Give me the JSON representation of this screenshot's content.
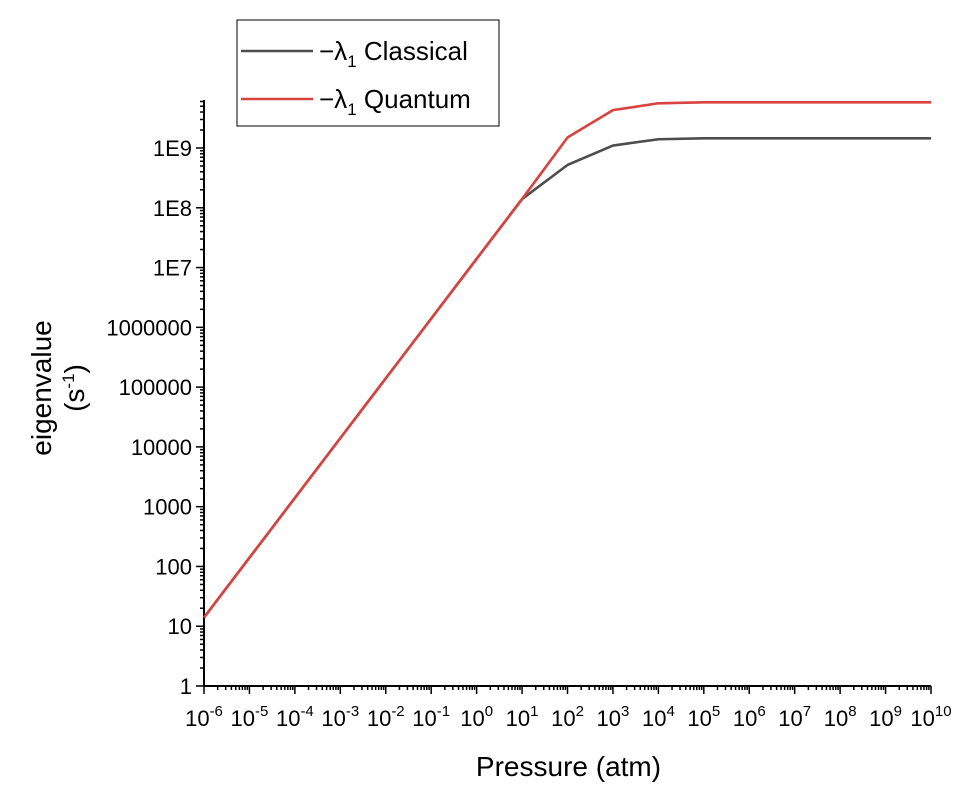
{
  "chart_data": {
    "type": "line",
    "xlabel": "Pressure (atm)",
    "ylabel": "eigenvalue",
    "ylabel_unit": "(s-1)",
    "xscale": "log",
    "yscale": "log",
    "xlim": [
      1e-06,
      10000000000.0
    ],
    "ylim": [
      1,
      10000000000.0
    ],
    "x_ticks": [
      {
        "base": "10",
        "exp": "-6",
        "value": 1e-06
      },
      {
        "base": "10",
        "exp": "-5",
        "value": 1e-05
      },
      {
        "base": "10",
        "exp": "-4",
        "value": 0.0001
      },
      {
        "base": "10",
        "exp": "-3",
        "value": 0.001
      },
      {
        "base": "10",
        "exp": "-2",
        "value": 0.01
      },
      {
        "base": "10",
        "exp": "-1",
        "value": 0.1
      },
      {
        "base": "10",
        "exp": "0",
        "value": 1
      },
      {
        "base": "10",
        "exp": "1",
        "value": 10
      },
      {
        "base": "10",
        "exp": "2",
        "value": 100
      },
      {
        "base": "10",
        "exp": "3",
        "value": 1000
      },
      {
        "base": "10",
        "exp": "4",
        "value": 10000
      },
      {
        "base": "10",
        "exp": "5",
        "value": 100000
      },
      {
        "base": "10",
        "exp": "6",
        "value": 1000000
      },
      {
        "base": "10",
        "exp": "7",
        "value": 10000000
      },
      {
        "base": "10",
        "exp": "8",
        "value": 100000000
      },
      {
        "base": "10",
        "exp": "9",
        "value": 1000000000
      },
      {
        "base": "10",
        "exp": "10",
        "value": 10000000000
      }
    ],
    "y_ticks": [
      {
        "label": "1",
        "value": 1
      },
      {
        "label": "10",
        "value": 10
      },
      {
        "label": "100",
        "value": 100
      },
      {
        "label": "1000",
        "value": 1000
      },
      {
        "label": "10000",
        "value": 10000
      },
      {
        "label": "100000",
        "value": 100000
      },
      {
        "label": "1000000",
        "value": 1000000
      },
      {
        "label": "1E7",
        "value": 10000000
      },
      {
        "label": "1E8",
        "value": 100000000
      },
      {
        "label": "1E9",
        "value": 1000000000
      }
    ],
    "legend_position": "top-left",
    "series": [
      {
        "name": "Classical",
        "color": "#4d4d4d",
        "x": [
          1e-06,
          1e-05,
          0.0001,
          0.001,
          0.01,
          0.1,
          1,
          10,
          100,
          1000,
          10000,
          100000,
          1000000,
          10000000,
          100000000,
          1000000000,
          10000000000
        ],
        "y": [
          14,
          140,
          1400,
          14000,
          140000,
          1400000,
          14000000,
          140000000,
          520000000,
          1100000000,
          1400000000,
          1450000000,
          1450000000,
          1450000000,
          1450000000,
          1450000000,
          1450000000
        ]
      },
      {
        "name": "Quantum",
        "color": "#d9423f",
        "x": [
          1e-06,
          1e-05,
          0.0001,
          0.001,
          0.01,
          0.1,
          1,
          10,
          100,
          1000,
          10000,
          100000,
          1000000,
          10000000,
          100000000,
          1000000000,
          10000000000
        ],
        "y": [
          14,
          140,
          1400,
          14000,
          140000,
          1400000,
          14000000,
          140000000,
          1500000000,
          4300000000,
          5600000000,
          5800000000,
          5800000000,
          5800000000,
          5800000000,
          5800000000,
          5800000000
        ]
      }
    ]
  }
}
